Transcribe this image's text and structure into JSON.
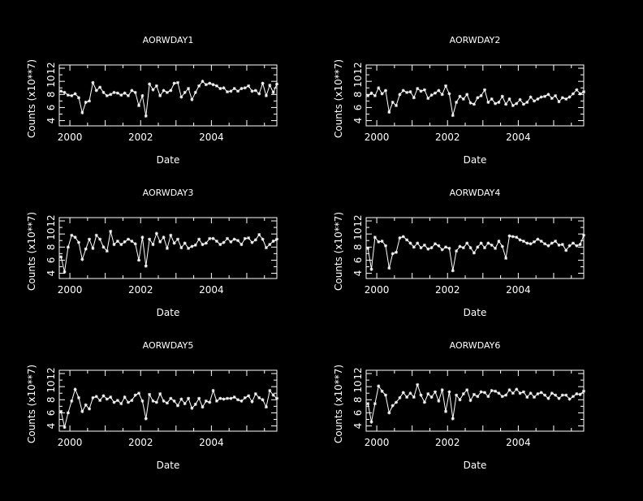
{
  "chart_data": [
    {
      "type": "line",
      "title": "AORWDAY1",
      "xlabel": "Date",
      "ylabel": "Counts (x10**7)",
      "xlim": [
        1999.7,
        2005.85
      ],
      "ylim": [
        3.2,
        12.5
      ],
      "xticks": [
        2000,
        2002,
        2004
      ],
      "yticks": [
        4,
        6,
        8,
        10,
        12
      ],
      "series": [
        {
          "x": [
            1999.75,
            1999.85,
            1999.95,
            2000.05,
            2000.15,
            2000.25,
            2000.35,
            2000.45,
            2000.55,
            2000.65,
            2000.75,
            2000.85,
            2000.95,
            2001.05,
            2001.15,
            2001.25,
            2001.35,
            2001.45,
            2001.55,
            2001.65,
            2001.75,
            2001.85,
            2001.95,
            2002.05,
            2002.15,
            2002.25,
            2002.35,
            2002.45,
            2002.55,
            2002.65,
            2002.75,
            2002.85,
            2002.95,
            2003.05,
            2003.15,
            2003.25,
            2003.35,
            2003.45,
            2003.55,
            2003.65,
            2003.75,
            2003.85,
            2003.95,
            2004.05,
            2004.15,
            2004.25,
            2004.35,
            2004.45,
            2004.55,
            2004.65,
            2004.75,
            2004.85,
            2004.95,
            2005.05,
            2005.15,
            2005.25,
            2005.35,
            2005.45,
            2005.55,
            2005.65,
            2005.75,
            2005.85
          ],
          "values": [
            8.5,
            8.3,
            7.9,
            7.8,
            8.1,
            7.5,
            5.2,
            6.8,
            7.0,
            9.8,
            8.6,
            9.1,
            8.3,
            7.8,
            8.0,
            8.3,
            8.2,
            7.9,
            8.2,
            7.8,
            8.6,
            8.3,
            6.3,
            7.8,
            4.7,
            9.6,
            8.7,
            9.3,
            7.8,
            8.6,
            8.3,
            8.6,
            9.7,
            9.8,
            7.6,
            8.3,
            8.9,
            7.2,
            8.3,
            9.3,
            10.0,
            9.5,
            9.7,
            9.5,
            9.3,
            8.9,
            9.0,
            8.4,
            8.5,
            8.9,
            8.5,
            8.9,
            9.0,
            9.3,
            8.5,
            8.6,
            8.1,
            9.7,
            7.8,
            9.4,
            8.3,
            9.6
          ]
        }
      ]
    },
    {
      "type": "line",
      "title": "AORWDAY2",
      "xlabel": "Date",
      "ylabel": "Counts (x10**7)",
      "xlim": [
        1999.7,
        2005.85
      ],
      "ylim": [
        3.2,
        12.5
      ],
      "xticks": [
        2000,
        2002,
        2004
      ],
      "yticks": [
        4,
        6,
        8,
        10,
        12
      ],
      "series": [
        {
          "x": [
            1999.75,
            1999.85,
            1999.95,
            2000.05,
            2000.15,
            2000.25,
            2000.35,
            2000.45,
            2000.55,
            2000.65,
            2000.75,
            2000.85,
            2000.95,
            2001.05,
            2001.15,
            2001.25,
            2001.35,
            2001.45,
            2001.55,
            2001.65,
            2001.75,
            2001.85,
            2001.95,
            2002.05,
            2002.15,
            2002.25,
            2002.35,
            2002.45,
            2002.55,
            2002.65,
            2002.75,
            2002.85,
            2002.95,
            2003.05,
            2003.15,
            2003.25,
            2003.35,
            2003.45,
            2003.55,
            2003.65,
            2003.75,
            2003.85,
            2003.95,
            2004.05,
            2004.15,
            2004.25,
            2004.35,
            2004.45,
            2004.55,
            2004.65,
            2004.75,
            2004.85,
            2004.95,
            2005.05,
            2005.15,
            2005.25,
            2005.35,
            2005.45,
            2005.55,
            2005.65,
            2005.75,
            2005.85
          ],
          "values": [
            7.8,
            8.2,
            7.8,
            9.0,
            8.1,
            8.6,
            5.3,
            6.8,
            6.3,
            8.0,
            8.6,
            8.3,
            8.4,
            7.5,
            8.9,
            8.5,
            8.7,
            7.4,
            7.9,
            8.2,
            8.6,
            8.0,
            9.3,
            8.1,
            4.8,
            6.8,
            7.7,
            7.3,
            8.0,
            6.7,
            6.5,
            7.5,
            7.8,
            8.7,
            6.8,
            7.3,
            6.6,
            6.8,
            7.7,
            6.5,
            7.3,
            6.3,
            6.6,
            7.2,
            6.5,
            6.8,
            7.6,
            7.0,
            7.3,
            7.6,
            7.7,
            8.0,
            7.4,
            7.8,
            6.9,
            7.5,
            7.3,
            7.6,
            8.1,
            8.7,
            8.1,
            8.4
          ]
        }
      ]
    },
    {
      "type": "line",
      "title": "AORWDAY3",
      "xlabel": "Date",
      "ylabel": "Counts (x10**7)",
      "xlim": [
        1999.7,
        2005.85
      ],
      "ylim": [
        3.2,
        12.5
      ],
      "xticks": [
        2000,
        2002,
        2004
      ],
      "yticks": [
        4,
        6,
        8,
        10,
        12
      ],
      "series": [
        {
          "x": [
            1999.75,
            1999.85,
            1999.95,
            2000.05,
            2000.15,
            2000.25,
            2000.35,
            2000.45,
            2000.55,
            2000.65,
            2000.75,
            2000.85,
            2000.95,
            2001.05,
            2001.15,
            2001.25,
            2001.35,
            2001.45,
            2001.55,
            2001.65,
            2001.75,
            2001.85,
            2001.95,
            2002.05,
            2002.15,
            2002.25,
            2002.35,
            2002.45,
            2002.55,
            2002.65,
            2002.75,
            2002.85,
            2002.95,
            2003.05,
            2003.15,
            2003.25,
            2003.35,
            2003.45,
            2003.55,
            2003.65,
            2003.75,
            2003.85,
            2003.95,
            2004.05,
            2004.15,
            2004.25,
            2004.35,
            2004.45,
            2004.55,
            2004.65,
            2004.75,
            2004.85,
            2004.95,
            2005.05,
            2005.15,
            2005.25,
            2005.35,
            2005.45,
            2005.55,
            2005.65,
            2005.75,
            2005.85
          ],
          "values": [
            6.5,
            4.2,
            8.0,
            9.8,
            9.5,
            8.7,
            6.1,
            7.7,
            9.2,
            7.8,
            9.8,
            9.2,
            8.0,
            7.4,
            10.4,
            8.4,
            8.9,
            8.4,
            8.8,
            9.2,
            8.9,
            8.5,
            6.0,
            9.5,
            5.1,
            9.2,
            8.4,
            10.1,
            8.8,
            9.5,
            7.8,
            9.8,
            8.6,
            9.2,
            7.9,
            8.6,
            7.8,
            8.1,
            8.3,
            9.2,
            8.4,
            8.6,
            9.3,
            9.3,
            8.9,
            8.4,
            8.7,
            9.3,
            8.8,
            9.2,
            9.0,
            8.4,
            9.3,
            9.4,
            8.7,
            9.1,
            9.9,
            9.2,
            7.9,
            8.4,
            8.9,
            9.2
          ]
        }
      ]
    },
    {
      "type": "line",
      "title": "AORWDAY4",
      "xlabel": "Date",
      "ylabel": "Counts (x10**7)",
      "xlim": [
        1999.7,
        2005.85
      ],
      "ylim": [
        3.2,
        12.5
      ],
      "xticks": [
        2000,
        2002,
        2004
      ],
      "yticks": [
        4,
        6,
        8,
        10,
        12
      ],
      "series": [
        {
          "x": [
            1999.75,
            1999.85,
            1999.95,
            2000.05,
            2000.15,
            2000.25,
            2000.35,
            2000.45,
            2000.55,
            2000.65,
            2000.75,
            2000.85,
            2000.95,
            2001.05,
            2001.15,
            2001.25,
            2001.35,
            2001.45,
            2001.55,
            2001.65,
            2001.75,
            2001.85,
            2001.95,
            2002.05,
            2002.15,
            2002.25,
            2002.35,
            2002.45,
            2002.55,
            2002.65,
            2002.75,
            2002.85,
            2002.95,
            2003.05,
            2003.15,
            2003.25,
            2003.35,
            2003.45,
            2003.55,
            2003.65,
            2003.75,
            2003.85,
            2003.95,
            2004.05,
            2004.15,
            2004.25,
            2004.35,
            2004.45,
            2004.55,
            2004.65,
            2004.75,
            2004.85,
            2004.95,
            2005.05,
            2005.15,
            2005.25,
            2005.35,
            2005.45,
            2005.55,
            2005.65,
            2005.75,
            2005.85
          ],
          "values": [
            7.8,
            4.6,
            9.5,
            8.8,
            8.9,
            8.2,
            4.8,
            7.0,
            7.2,
            9.4,
            9.6,
            9.1,
            8.6,
            8.0,
            8.6,
            7.9,
            8.3,
            7.7,
            7.9,
            8.5,
            8.2,
            7.6,
            8.0,
            7.8,
            4.4,
            7.4,
            8.1,
            7.9,
            8.6,
            7.9,
            7.1,
            8.0,
            8.6,
            7.9,
            8.6,
            8.3,
            7.8,
            8.9,
            8.1,
            6.3,
            9.7,
            9.6,
            9.5,
            9.1,
            8.9,
            8.6,
            8.5,
            8.8,
            9.2,
            8.9,
            8.5,
            8.2,
            8.6,
            8.9,
            8.3,
            8.4,
            7.5,
            8.2,
            8.6,
            8.2,
            8.4,
            9.8
          ]
        }
      ]
    },
    {
      "type": "line",
      "title": "AORWDAY5",
      "xlabel": "Date",
      "ylabel": "Counts (x10**7)",
      "xlim": [
        1999.7,
        2005.85
      ],
      "ylim": [
        3.2,
        12.5
      ],
      "xticks": [
        2000,
        2002,
        2004
      ],
      "yticks": [
        4,
        6,
        8,
        10,
        12
      ],
      "series": [
        {
          "x": [
            1999.75,
            1999.85,
            1999.95,
            2000.05,
            2000.15,
            2000.25,
            2000.35,
            2000.45,
            2000.55,
            2000.65,
            2000.75,
            2000.85,
            2000.95,
            2001.05,
            2001.15,
            2001.25,
            2001.35,
            2001.45,
            2001.55,
            2001.65,
            2001.75,
            2001.85,
            2001.95,
            2002.05,
            2002.15,
            2002.25,
            2002.35,
            2002.45,
            2002.55,
            2002.65,
            2002.75,
            2002.85,
            2002.95,
            2003.05,
            2003.15,
            2003.25,
            2003.35,
            2003.45,
            2003.55,
            2003.65,
            2003.75,
            2003.85,
            2003.95,
            2004.05,
            2004.15,
            2004.25,
            2004.35,
            2004.45,
            2004.55,
            2004.65,
            2004.75,
            2004.85,
            2004.95,
            2005.05,
            2005.15,
            2005.25,
            2005.35,
            2005.45,
            2005.55,
            2005.65,
            2005.75,
            2005.85
          ],
          "values": [
            6.2,
            3.8,
            6.0,
            7.8,
            9.6,
            8.3,
            6.2,
            7.2,
            6.6,
            8.3,
            8.5,
            7.9,
            8.6,
            8.1,
            8.4,
            7.6,
            7.9,
            7.4,
            8.4,
            7.6,
            7.9,
            8.7,
            9.0,
            7.8,
            5.1,
            8.8,
            7.8,
            7.6,
            8.9,
            7.8,
            7.5,
            8.2,
            7.8,
            7.1,
            8.1,
            7.4,
            8.2,
            6.7,
            7.3,
            8.2,
            6.9,
            7.8,
            7.6,
            9.4,
            7.8,
            8.2,
            8.1,
            8.2,
            8.2,
            8.4,
            8.0,
            7.8,
            8.3,
            8.6,
            7.7,
            8.9,
            8.3,
            8.0,
            6.9,
            9.4,
            8.7,
            8.2
          ]
        }
      ]
    },
    {
      "type": "line",
      "title": "AORWDAY6",
      "xlabel": "Date",
      "ylabel": "Counts (x10**7)",
      "xlim": [
        1999.7,
        2005.85
      ],
      "ylim": [
        3.2,
        12.5
      ],
      "xticks": [
        2000,
        2002,
        2004
      ],
      "yticks": [
        4,
        6,
        8,
        10,
        12
      ],
      "series": [
        {
          "x": [
            1999.75,
            1999.85,
            1999.95,
            2000.05,
            2000.15,
            2000.25,
            2000.35,
            2000.45,
            2000.55,
            2000.65,
            2000.75,
            2000.85,
            2000.95,
            2001.05,
            2001.15,
            2001.25,
            2001.35,
            2001.45,
            2001.55,
            2001.65,
            2001.75,
            2001.85,
            2001.95,
            2002.05,
            2002.15,
            2002.25,
            2002.35,
            2002.45,
            2002.55,
            2002.65,
            2002.75,
            2002.85,
            2002.95,
            2003.05,
            2003.15,
            2003.25,
            2003.35,
            2003.45,
            2003.55,
            2003.65,
            2003.75,
            2003.85,
            2003.95,
            2004.05,
            2004.15,
            2004.25,
            2004.35,
            2004.45,
            2004.55,
            2004.65,
            2004.75,
            2004.85,
            2004.95,
            2005.05,
            2005.15,
            2005.25,
            2005.35,
            2005.45,
            2005.55,
            2005.65,
            2005.75,
            2005.85
          ],
          "values": [
            7.4,
            4.6,
            7.4,
            10.1,
            9.3,
            8.7,
            6.0,
            7.1,
            7.6,
            8.3,
            9.1,
            8.4,
            9.0,
            8.4,
            10.3,
            8.7,
            7.6,
            8.9,
            8.4,
            9.2,
            7.8,
            9.5,
            6.2,
            9.2,
            5.1,
            8.7,
            8.0,
            8.9,
            9.5,
            7.9,
            8.8,
            8.5,
            9.2,
            9.1,
            8.5,
            9.4,
            9.3,
            9.0,
            8.5,
            8.7,
            9.5,
            9.0,
            9.6,
            9.0,
            9.2,
            8.4,
            9.0,
            8.4,
            8.9,
            9.1,
            8.7,
            8.2,
            9.0,
            8.7,
            8.2,
            8.7,
            8.7,
            8.1,
            8.5,
            8.9,
            8.8,
            9.3
          ]
        }
      ]
    }
  ]
}
